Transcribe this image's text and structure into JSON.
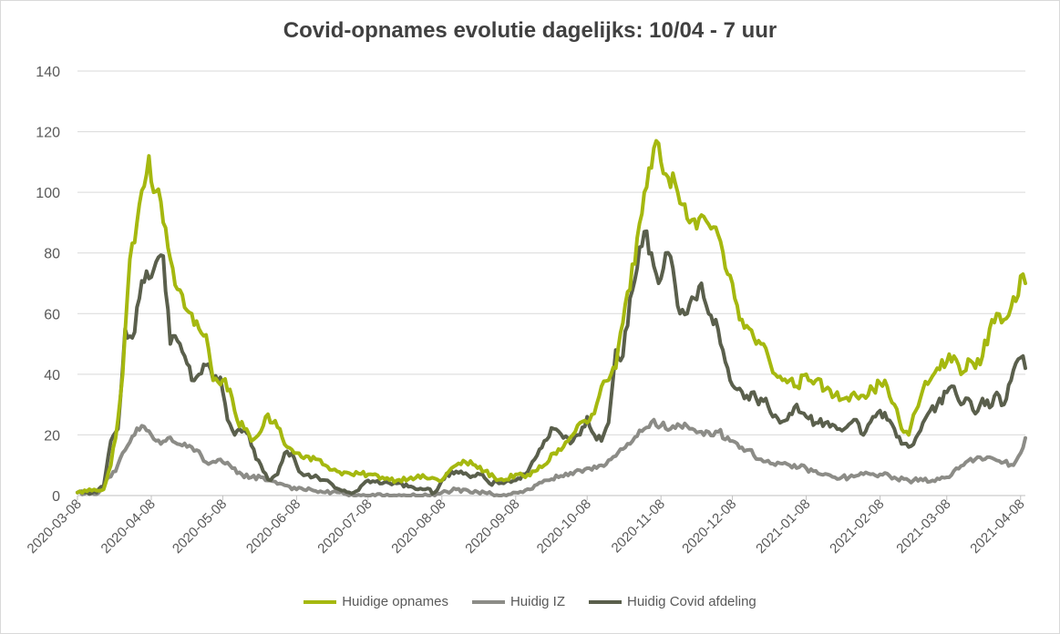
{
  "chart_data": {
    "type": "line",
    "title": "Covid-opnames evolutie dagelijks: 10/04 - 7 uur",
    "xlabel": "",
    "ylabel": "",
    "ylim": [
      0,
      140
    ],
    "yticks": [
      0,
      20,
      40,
      60,
      80,
      100,
      120,
      140
    ],
    "x_start": "2020-03-08",
    "x_end": "2021-04-10",
    "xticks": [
      "2020-03-08",
      "2020-04-08",
      "2020-05-08",
      "2020-06-08",
      "2020-07-08",
      "2020-08-08",
      "2020-09-08",
      "2020-10-08",
      "2020-11-08",
      "2020-12-08",
      "2021-01-08",
      "2021-02-08",
      "2021-03-08",
      "2021-04-08"
    ],
    "grid": true,
    "legend_position": "bottom",
    "series": [
      {
        "name": "Huidige opnames",
        "color": "#a5b80f",
        "x": [
          "2020-03-08",
          "2020-03-15",
          "2020-03-19",
          "2020-03-22",
          "2020-03-25",
          "2020-03-27",
          "2020-03-30",
          "2020-04-02",
          "2020-04-05",
          "2020-04-07",
          "2020-04-09",
          "2020-04-11",
          "2020-04-13",
          "2020-04-16",
          "2020-04-19",
          "2020-04-22",
          "2020-04-25",
          "2020-04-28",
          "2020-05-01",
          "2020-05-04",
          "2020-05-08",
          "2020-05-11",
          "2020-05-14",
          "2020-05-17",
          "2020-05-20",
          "2020-05-23",
          "2020-05-26",
          "2020-05-29",
          "2020-06-01",
          "2020-06-04",
          "2020-06-08",
          "2020-06-12",
          "2020-06-16",
          "2020-06-20",
          "2020-06-25",
          "2020-07-01",
          "2020-07-08",
          "2020-07-14",
          "2020-07-20",
          "2020-07-26",
          "2020-08-01",
          "2020-08-08",
          "2020-08-11",
          "2020-08-14",
          "2020-08-18",
          "2020-08-22",
          "2020-08-26",
          "2020-08-30",
          "2020-09-03",
          "2020-09-08",
          "2020-09-12",
          "2020-09-16",
          "2020-09-20",
          "2020-09-24",
          "2020-09-28",
          "2020-10-02",
          "2020-10-05",
          "2020-10-08",
          "2020-10-11",
          "2020-10-14",
          "2020-10-17",
          "2020-10-20",
          "2020-10-23",
          "2020-10-26",
          "2020-10-29",
          "2020-11-01",
          "2020-11-03",
          "2020-11-06",
          "2020-11-08",
          "2020-11-11",
          "2020-11-14",
          "2020-11-17",
          "2020-11-20",
          "2020-11-23",
          "2020-11-26",
          "2020-11-29",
          "2020-12-02",
          "2020-12-05",
          "2020-12-08",
          "2020-12-11",
          "2020-12-14",
          "2020-12-17",
          "2020-12-20",
          "2020-12-23",
          "2020-12-26",
          "2020-12-29",
          "2021-01-01",
          "2021-01-04",
          "2021-01-08",
          "2021-01-12",
          "2021-01-16",
          "2021-01-20",
          "2021-01-24",
          "2021-01-28",
          "2021-02-01",
          "2021-02-05",
          "2021-02-08",
          "2021-02-11",
          "2021-02-14",
          "2021-02-17",
          "2021-02-20",
          "2021-02-23",
          "2021-02-26",
          "2021-03-01",
          "2021-03-04",
          "2021-03-08",
          "2021-03-11",
          "2021-03-14",
          "2021-03-17",
          "2021-03-20",
          "2021-03-23",
          "2021-03-26",
          "2021-03-29",
          "2021-04-01",
          "2021-04-04",
          "2021-04-07",
          "2021-04-09",
          "2021-04-10"
        ],
        "values": [
          1,
          2,
          2,
          10,
          25,
          40,
          78,
          90,
          102,
          112,
          100,
          101,
          90,
          78,
          68,
          62,
          60,
          55,
          53,
          38,
          38,
          35,
          25,
          22,
          18,
          20,
          26,
          24,
          22,
          16,
          14,
          13,
          12,
          10,
          8,
          7,
          7,
          6,
          5,
          6,
          6,
          5,
          8,
          10,
          11,
          10,
          8,
          6,
          5,
          7,
          6,
          8,
          10,
          14,
          16,
          20,
          24,
          24,
          27,
          36,
          38,
          42,
          57,
          68,
          85,
          100,
          108,
          117,
          110,
          105,
          103,
          96,
          90,
          88,
          92,
          88,
          86,
          75,
          70,
          58,
          56,
          52,
          50,
          46,
          40,
          38,
          38,
          36,
          40,
          38,
          35,
          33,
          32,
          34,
          33,
          35,
          37,
          36,
          30,
          22,
          20,
          28,
          35,
          38,
          42,
          44,
          46,
          40,
          45,
          42,
          46,
          55,
          60,
          58,
          62,
          66,
          73,
          70
        ]
      },
      {
        "name": "Huidig IZ",
        "color": "#8c8c87",
        "x": [
          "2020-03-08",
          "2020-03-17",
          "2020-03-21",
          "2020-03-24",
          "2020-03-28",
          "2020-04-01",
          "2020-04-04",
          "2020-04-08",
          "2020-04-12",
          "2020-04-15",
          "2020-04-19",
          "2020-04-23",
          "2020-04-27",
          "2020-05-01",
          "2020-05-05",
          "2020-05-08",
          "2020-05-12",
          "2020-05-16",
          "2020-05-20",
          "2020-05-24",
          "2020-05-28",
          "2020-06-01",
          "2020-06-05",
          "2020-06-08",
          "2020-06-14",
          "2020-06-20",
          "2020-06-26",
          "2020-07-02",
          "2020-07-08",
          "2020-07-15",
          "2020-07-22",
          "2020-07-29",
          "2020-08-05",
          "2020-08-08",
          "2020-08-14",
          "2020-08-20",
          "2020-08-26",
          "2020-09-01",
          "2020-09-08",
          "2020-09-14",
          "2020-09-20",
          "2020-09-26",
          "2020-10-02",
          "2020-10-08",
          "2020-10-14",
          "2020-10-20",
          "2020-10-26",
          "2020-11-01",
          "2020-11-05",
          "2020-11-08",
          "2020-11-12",
          "2020-11-16",
          "2020-11-20",
          "2020-11-24",
          "2020-11-28",
          "2020-12-02",
          "2020-12-08",
          "2020-12-14",
          "2020-12-20",
          "2020-12-26",
          "2021-01-01",
          "2021-01-08",
          "2021-01-14",
          "2021-01-20",
          "2021-01-26",
          "2021-02-01",
          "2021-02-08",
          "2021-02-14",
          "2021-02-20",
          "2021-02-26",
          "2021-03-02",
          "2021-03-08",
          "2021-03-12",
          "2021-03-16",
          "2021-03-20",
          "2021-03-24",
          "2021-03-28",
          "2021-04-01",
          "2021-04-05",
          "2021-04-08",
          "2021-04-10"
        ],
        "values": [
          1,
          1,
          6,
          8,
          15,
          20,
          23,
          20,
          17,
          19,
          17,
          16,
          15,
          11,
          11,
          11,
          9,
          7,
          6,
          6,
          5,
          4,
          3,
          2,
          2,
          1,
          1,
          0,
          0,
          0,
          0,
          0,
          0,
          1,
          2,
          1,
          1,
          0,
          1,
          2,
          5,
          6,
          7,
          9,
          10,
          13,
          17,
          22,
          25,
          23,
          22,
          23,
          22,
          21,
          21,
          21,
          18,
          15,
          12,
          10,
          10,
          9,
          7,
          6,
          6,
          7,
          7,
          6,
          5,
          5,
          5,
          6,
          9,
          11,
          12,
          12,
          12,
          11,
          10,
          14,
          19
        ]
      },
      {
        "name": "Huidig Covid afdeling",
        "color": "#5a5f4c",
        "x": [
          "2020-03-08",
          "2020-03-16",
          "2020-03-19",
          "2020-03-22",
          "2020-03-25",
          "2020-03-28",
          "2020-03-31",
          "2020-04-03",
          "2020-04-06",
          "2020-04-08",
          "2020-04-10",
          "2020-04-13",
          "2020-04-16",
          "2020-04-19",
          "2020-04-22",
          "2020-04-25",
          "2020-04-28",
          "2020-05-01",
          "2020-05-04",
          "2020-05-07",
          "2020-05-10",
          "2020-05-13",
          "2020-05-16",
          "2020-05-19",
          "2020-05-22",
          "2020-05-25",
          "2020-05-28",
          "2020-05-31",
          "2020-06-03",
          "2020-06-06",
          "2020-06-09",
          "2020-06-13",
          "2020-06-17",
          "2020-06-21",
          "2020-06-26",
          "2020-07-02",
          "2020-07-08",
          "2020-07-14",
          "2020-07-20",
          "2020-07-26",
          "2020-08-01",
          "2020-08-05",
          "2020-08-08",
          "2020-08-12",
          "2020-08-16",
          "2020-08-20",
          "2020-08-24",
          "2020-08-28",
          "2020-09-01",
          "2020-09-05",
          "2020-09-08",
          "2020-09-12",
          "2020-09-16",
          "2020-09-20",
          "2020-09-24",
          "2020-09-28",
          "2020-10-02",
          "2020-10-05",
          "2020-10-08",
          "2020-10-11",
          "2020-10-14",
          "2020-10-17",
          "2020-10-20",
          "2020-10-23",
          "2020-10-26",
          "2020-10-29",
          "2020-11-01",
          "2020-11-04",
          "2020-11-07",
          "2020-11-10",
          "2020-11-13",
          "2020-11-16",
          "2020-11-19",
          "2020-11-22",
          "2020-11-25",
          "2020-11-28",
          "2020-12-01",
          "2020-12-04",
          "2020-12-07",
          "2020-12-10",
          "2020-12-13",
          "2020-12-16",
          "2020-12-19",
          "2020-12-22",
          "2020-12-25",
          "2020-12-28",
          "2020-12-31",
          "2021-01-04",
          "2021-01-08",
          "2021-01-12",
          "2021-01-16",
          "2021-01-20",
          "2021-01-24",
          "2021-01-28",
          "2021-02-01",
          "2021-02-05",
          "2021-02-08",
          "2021-02-11",
          "2021-02-14",
          "2021-02-17",
          "2021-02-20",
          "2021-02-23",
          "2021-02-26",
          "2021-03-01",
          "2021-03-04",
          "2021-03-08",
          "2021-03-11",
          "2021-03-14",
          "2021-03-17",
          "2021-03-20",
          "2021-03-23",
          "2021-03-26",
          "2021-03-29",
          "2021-04-01",
          "2021-04-04",
          "2021-04-07",
          "2021-04-09",
          "2021-04-10"
        ],
        "values": [
          1,
          1,
          3,
          18,
          22,
          55,
          52,
          65,
          74,
          72,
          77,
          79,
          50,
          51,
          46,
          38,
          40,
          43,
          38,
          39,
          25,
          20,
          21,
          20,
          12,
          8,
          5,
          7,
          14,
          14,
          8,
          7,
          6,
          5,
          2,
          1,
          5,
          4,
          4,
          3,
          2,
          1,
          5,
          8,
          8,
          6,
          7,
          4,
          4,
          5,
          5,
          7,
          12,
          18,
          22,
          19,
          18,
          20,
          26,
          20,
          18,
          24,
          48,
          46,
          65,
          75,
          87,
          80,
          70,
          80,
          75,
          60,
          60,
          65,
          70,
          60,
          58,
          48,
          38,
          35,
          32,
          34,
          30,
          32,
          26,
          24,
          25,
          30,
          26,
          24,
          24,
          23,
          22,
          25,
          20,
          26,
          28,
          25,
          22,
          17,
          16,
          19,
          24,
          28,
          30,
          34,
          36,
          30,
          32,
          27,
          32,
          29,
          34,
          30,
          38,
          45,
          46,
          42
        ]
      }
    ]
  }
}
